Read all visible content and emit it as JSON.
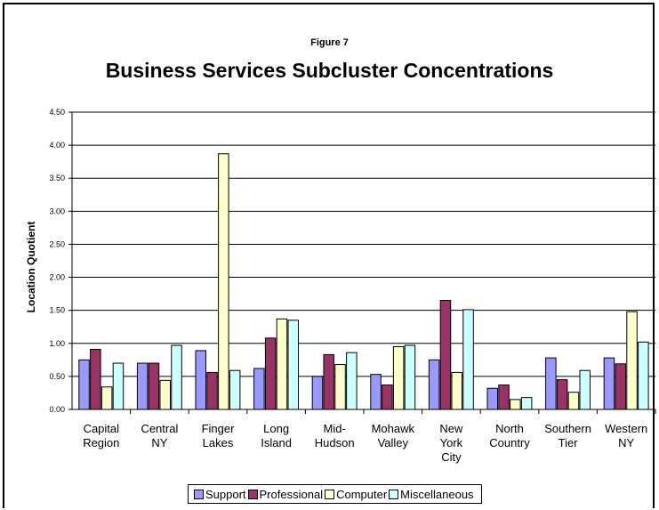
{
  "figure_label": "Figure 7",
  "chart_data": {
    "type": "bar",
    "title": "Business Services Subcluster Concentrations",
    "xlabel": "",
    "ylabel": "Location Quotient",
    "ylim": [
      0,
      4.5
    ],
    "yticks": [
      "0.00",
      "0.50",
      "1.00",
      "1.50",
      "2.00",
      "2.50",
      "3.00",
      "3.50",
      "4.00",
      "4.50"
    ],
    "grid": true,
    "legend_position": "bottom",
    "categories": [
      [
        "Capital",
        "Region"
      ],
      [
        "Central",
        "NY"
      ],
      [
        "Finger",
        "Lakes"
      ],
      [
        "Long",
        "Island"
      ],
      [
        "Mid-",
        "Hudson"
      ],
      [
        "Mohawk",
        "Valley"
      ],
      [
        "New",
        "York",
        "City"
      ],
      [
        "North",
        "Country"
      ],
      [
        "Southern",
        "Tier"
      ],
      [
        "Western",
        "NY"
      ]
    ],
    "series": [
      {
        "name": "Support",
        "color": "#9999FF",
        "values": [
          0.75,
          0.7,
          0.89,
          0.62,
          0.5,
          0.53,
          0.75,
          0.32,
          0.78,
          0.78
        ]
      },
      {
        "name": "Professional",
        "color": "#993366",
        "values": [
          0.91,
          0.7,
          0.56,
          1.08,
          0.83,
          0.37,
          1.65,
          0.37,
          0.45,
          0.69
        ]
      },
      {
        "name": "Computer",
        "color": "#FFFFCC",
        "values": [
          0.34,
          0.44,
          3.87,
          1.37,
          0.68,
          0.95,
          0.56,
          0.15,
          0.26,
          1.48
        ]
      },
      {
        "name": "Miscellaneous",
        "color": "#CCFFFF",
        "values": [
          0.7,
          0.97,
          0.59,
          1.35,
          0.86,
          0.97,
          1.51,
          0.18,
          0.59,
          1.02
        ]
      }
    ]
  }
}
